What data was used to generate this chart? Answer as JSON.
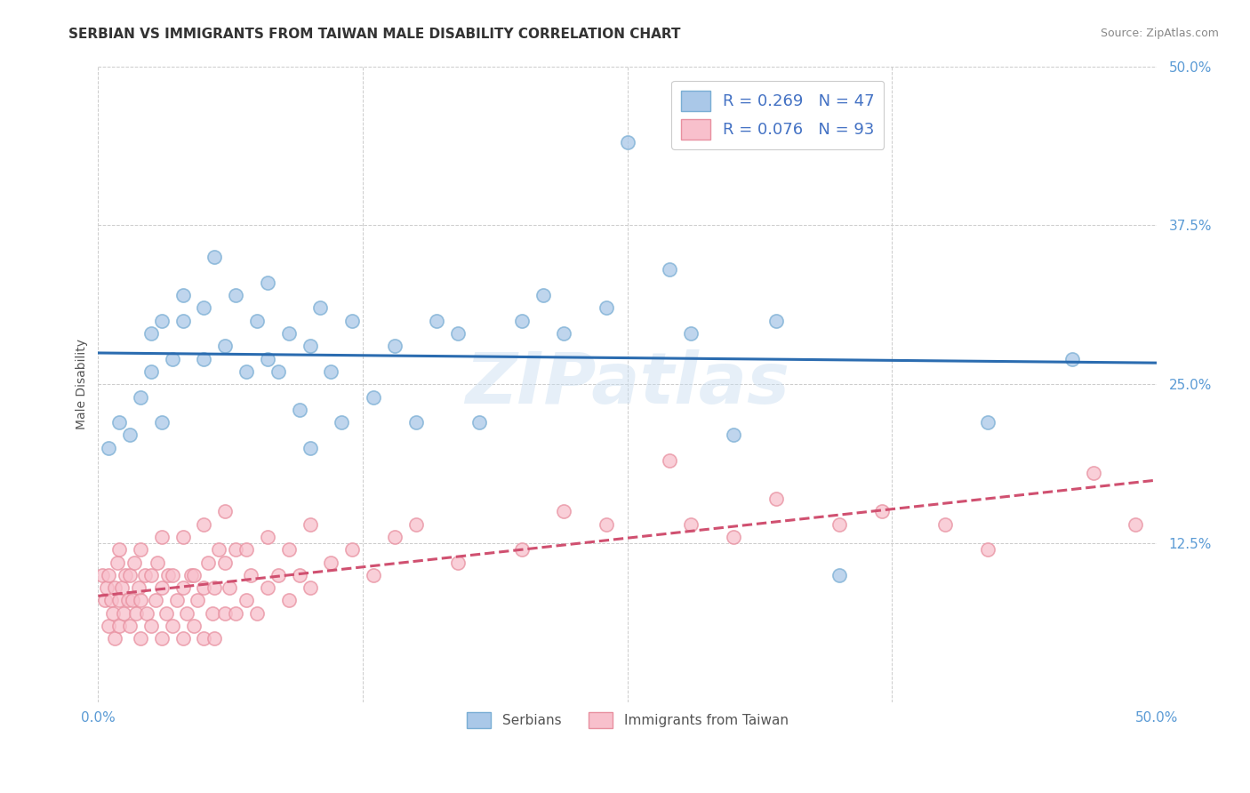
{
  "title": "SERBIAN VS IMMIGRANTS FROM TAIWAN MALE DISABILITY CORRELATION CHART",
  "source": "Source: ZipAtlas.com",
  "ylabel": "Male Disability",
  "xlim": [
    0.0,
    0.5
  ],
  "ylim": [
    0.0,
    0.5
  ],
  "xticks": [
    0.0,
    0.125,
    0.25,
    0.375,
    0.5
  ],
  "yticks": [
    0.0,
    0.125,
    0.25,
    0.375,
    0.5
  ],
  "xtick_labels": [
    "0.0%",
    "",
    "",
    "",
    "50.0%"
  ],
  "ytick_labels": [
    "",
    "12.5%",
    "25.0%",
    "37.5%",
    "50.0%"
  ],
  "series": [
    {
      "name": "Serbians",
      "R": 0.269,
      "N": 47,
      "dot_facecolor": "#aac8e8",
      "dot_edgecolor": "#7aaed4",
      "line_color": "#2b6cb0",
      "line_style": "solid",
      "x": [
        0.005,
        0.01,
        0.015,
        0.02,
        0.025,
        0.025,
        0.03,
        0.03,
        0.035,
        0.04,
        0.04,
        0.05,
        0.05,
        0.055,
        0.06,
        0.065,
        0.07,
        0.075,
        0.08,
        0.08,
        0.085,
        0.09,
        0.095,
        0.1,
        0.1,
        0.105,
        0.11,
        0.115,
        0.12,
        0.13,
        0.14,
        0.15,
        0.16,
        0.17,
        0.18,
        0.2,
        0.21,
        0.22,
        0.24,
        0.25,
        0.27,
        0.28,
        0.3,
        0.32,
        0.35,
        0.42,
        0.46
      ],
      "y": [
        0.2,
        0.22,
        0.21,
        0.24,
        0.26,
        0.29,
        0.22,
        0.3,
        0.27,
        0.3,
        0.32,
        0.27,
        0.31,
        0.35,
        0.28,
        0.32,
        0.26,
        0.3,
        0.27,
        0.33,
        0.26,
        0.29,
        0.23,
        0.2,
        0.28,
        0.31,
        0.26,
        0.22,
        0.3,
        0.24,
        0.28,
        0.22,
        0.3,
        0.29,
        0.22,
        0.3,
        0.32,
        0.29,
        0.31,
        0.44,
        0.34,
        0.29,
        0.21,
        0.3,
        0.1,
        0.22,
        0.27
      ]
    },
    {
      "name": "Immigrants from Taiwan",
      "R": 0.076,
      "N": 93,
      "dot_facecolor": "#f8c0cc",
      "dot_edgecolor": "#e890a0",
      "line_color": "#d05070",
      "line_style": "dashed",
      "x": [
        0.002,
        0.003,
        0.004,
        0.005,
        0.005,
        0.006,
        0.007,
        0.008,
        0.008,
        0.009,
        0.01,
        0.01,
        0.01,
        0.011,
        0.012,
        0.013,
        0.014,
        0.015,
        0.015,
        0.016,
        0.017,
        0.018,
        0.019,
        0.02,
        0.02,
        0.02,
        0.022,
        0.023,
        0.025,
        0.025,
        0.027,
        0.028,
        0.03,
        0.03,
        0.03,
        0.032,
        0.033,
        0.035,
        0.035,
        0.037,
        0.04,
        0.04,
        0.04,
        0.042,
        0.044,
        0.045,
        0.045,
        0.047,
        0.05,
        0.05,
        0.05,
        0.052,
        0.054,
        0.055,
        0.055,
        0.057,
        0.06,
        0.06,
        0.06,
        0.062,
        0.065,
        0.065,
        0.07,
        0.07,
        0.072,
        0.075,
        0.08,
        0.08,
        0.085,
        0.09,
        0.09,
        0.095,
        0.1,
        0.1,
        0.11,
        0.12,
        0.13,
        0.14,
        0.15,
        0.17,
        0.2,
        0.22,
        0.24,
        0.27,
        0.28,
        0.3,
        0.32,
        0.35,
        0.37,
        0.4,
        0.42,
        0.47,
        0.49
      ],
      "y": [
        0.1,
        0.08,
        0.09,
        0.06,
        0.1,
        0.08,
        0.07,
        0.09,
        0.05,
        0.11,
        0.06,
        0.08,
        0.12,
        0.09,
        0.07,
        0.1,
        0.08,
        0.06,
        0.1,
        0.08,
        0.11,
        0.07,
        0.09,
        0.05,
        0.08,
        0.12,
        0.1,
        0.07,
        0.06,
        0.1,
        0.08,
        0.11,
        0.05,
        0.09,
        0.13,
        0.07,
        0.1,
        0.06,
        0.1,
        0.08,
        0.05,
        0.09,
        0.13,
        0.07,
        0.1,
        0.06,
        0.1,
        0.08,
        0.05,
        0.09,
        0.14,
        0.11,
        0.07,
        0.05,
        0.09,
        0.12,
        0.07,
        0.11,
        0.15,
        0.09,
        0.07,
        0.12,
        0.08,
        0.12,
        0.1,
        0.07,
        0.09,
        0.13,
        0.1,
        0.08,
        0.12,
        0.1,
        0.09,
        0.14,
        0.11,
        0.12,
        0.1,
        0.13,
        0.14,
        0.11,
        0.12,
        0.15,
        0.14,
        0.19,
        0.14,
        0.13,
        0.16,
        0.14,
        0.15,
        0.14,
        0.12,
        0.18,
        0.14
      ]
    }
  ],
  "watermark_text": "ZIPatlas",
  "bottom_legend": [
    "Serbians",
    "Immigrants from Taiwan"
  ],
  "title_fontsize": 11,
  "axis_label_fontsize": 10,
  "tick_fontsize": 11,
  "background_color": "#ffffff",
  "grid_color": "#cccccc",
  "tick_color": "#5b9bd5"
}
